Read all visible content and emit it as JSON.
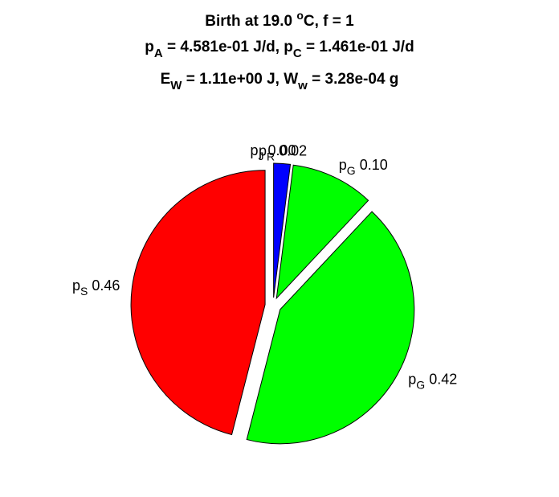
{
  "chart_data": {
    "type": "pie",
    "title_lines": [
      [
        "Birth at 19.0 ",
        "o",
        "C, f = 1"
      ],
      [
        "p",
        "A",
        " = 4.581e-01 J/d, p",
        "C",
        " = 1.461e-01 J/d"
      ],
      [
        "E",
        "W",
        " = 1.11e+00 J, W",
        "w",
        " = 3.28e-04 g"
      ]
    ],
    "categories": [
      [
        "p",
        "S"
      ],
      [
        "p",
        "G"
      ],
      [
        "p",
        "G"
      ],
      [
        "p",
        "R"
      ],
      [
        "p",
        "J"
      ]
    ],
    "values": [
      0.46,
      0.42,
      0.1,
      0.02,
      0.0
    ],
    "value_labels": [
      "0.46",
      "0.42",
      "0.10",
      "0.02",
      "0.00"
    ],
    "colors": [
      "#ff0000",
      "#00ff00",
      "#00ff00",
      "#0000ff",
      "#00ffff"
    ]
  }
}
